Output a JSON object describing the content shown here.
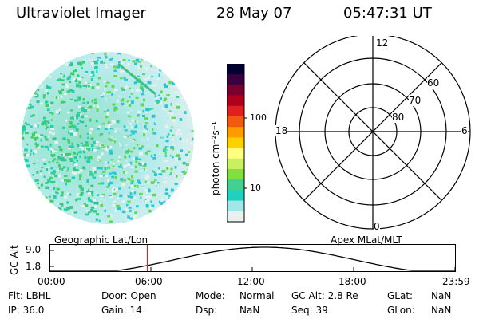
{
  "header": {
    "instrument": "Ultraviolet Imager",
    "date": "28 May 07",
    "time": "05:47:31 UT"
  },
  "colorbar": {
    "unit_label": "photon cm⁻²s⁻¹",
    "ticks": [
      "100",
      "10"
    ],
    "colors": [
      "#000033",
      "#3a0040",
      "#7a0030",
      "#b00020",
      "#e02020",
      "#f05a10",
      "#ff9a00",
      "#ffd000",
      "#ffff80",
      "#c8f060",
      "#80e040",
      "#40d090",
      "#20d0c0",
      "#a0e8e8",
      "#e8f0f0"
    ]
  },
  "polar_plot": {
    "mlt_labels": {
      "top": "12",
      "left": "18",
      "right": "6",
      "bottom": "0"
    },
    "lat_labels": [
      "60",
      "70",
      "80"
    ]
  },
  "timeline": {
    "left_title": "Geographic Lat/Lon",
    "right_title": "Apex MLat/MLT",
    "ylabel": "GC Alt",
    "y_ticks": [
      "9.0",
      "1.8"
    ],
    "x_ticks": [
      "00:00",
      "06:00",
      "12:00",
      "18:00",
      "23:59"
    ],
    "current_time": "05:47"
  },
  "info": {
    "flt": "Flt: LBHL",
    "ip": "IP: 36.0",
    "door": "Door: Open",
    "gain": "Gain: 14",
    "mode_label": "Mode:",
    "mode_value": "Normal",
    "dsp_label": "Dsp:",
    "dsp_value": "NaN",
    "gcalt": "GC Alt: 2.8 Re",
    "seq": "Seq: 39",
    "glat_label": "GLat:",
    "glat_value": "NaN",
    "glon_label": "GLon:",
    "glon_value": "NaN"
  }
}
